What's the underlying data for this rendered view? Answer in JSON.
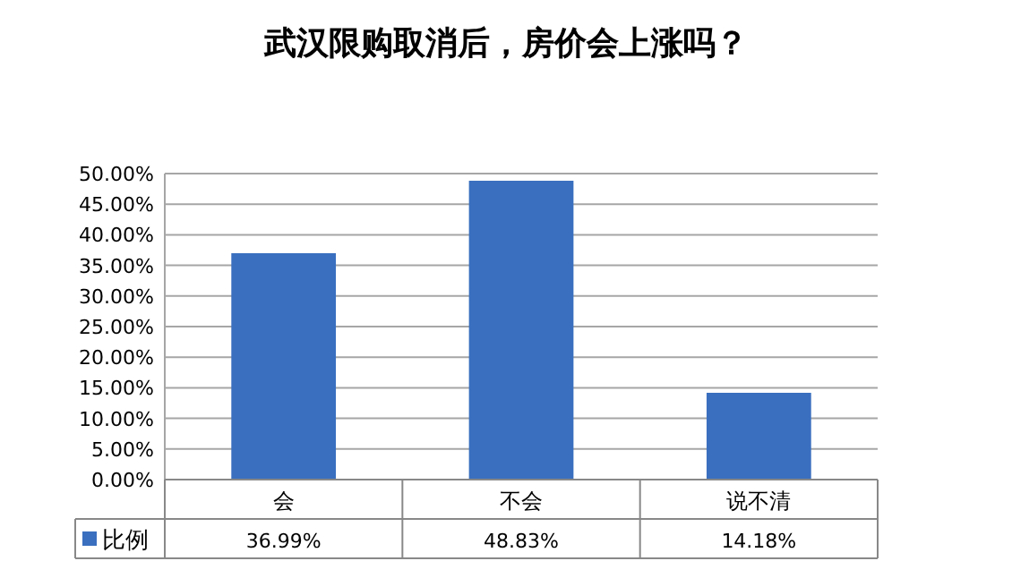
{
  "chart_data": {
    "type": "bar",
    "title": "武汉限购取消后，房价会上涨吗？",
    "categories": [
      "会",
      "不会",
      "说不清"
    ],
    "series": [
      {
        "name": "比例",
        "color": "#3a6fbf",
        "values": [
          36.99,
          48.83,
          14.18
        ]
      }
    ],
    "ylim": [
      0,
      50
    ],
    "yticks": [
      {
        "value": 0,
        "label": "0.00%"
      },
      {
        "value": 5,
        "label": "5.00%"
      },
      {
        "value": 10,
        "label": "10.00%"
      },
      {
        "value": 15,
        "label": "15.00%"
      },
      {
        "value": 20,
        "label": "20.00%"
      },
      {
        "value": 25,
        "label": "25.00%"
      },
      {
        "value": 30,
        "label": "30.00%"
      },
      {
        "value": 35,
        "label": "35.00%"
      },
      {
        "value": 40,
        "label": "40.00%"
      },
      {
        "value": 45,
        "label": "45.00%"
      },
      {
        "value": 50,
        "label": "50.00%"
      }
    ],
    "value_labels": [
      "36.99%",
      "48.83%",
      "14.18%"
    ],
    "grid": "y",
    "legend": "bottom left"
  }
}
